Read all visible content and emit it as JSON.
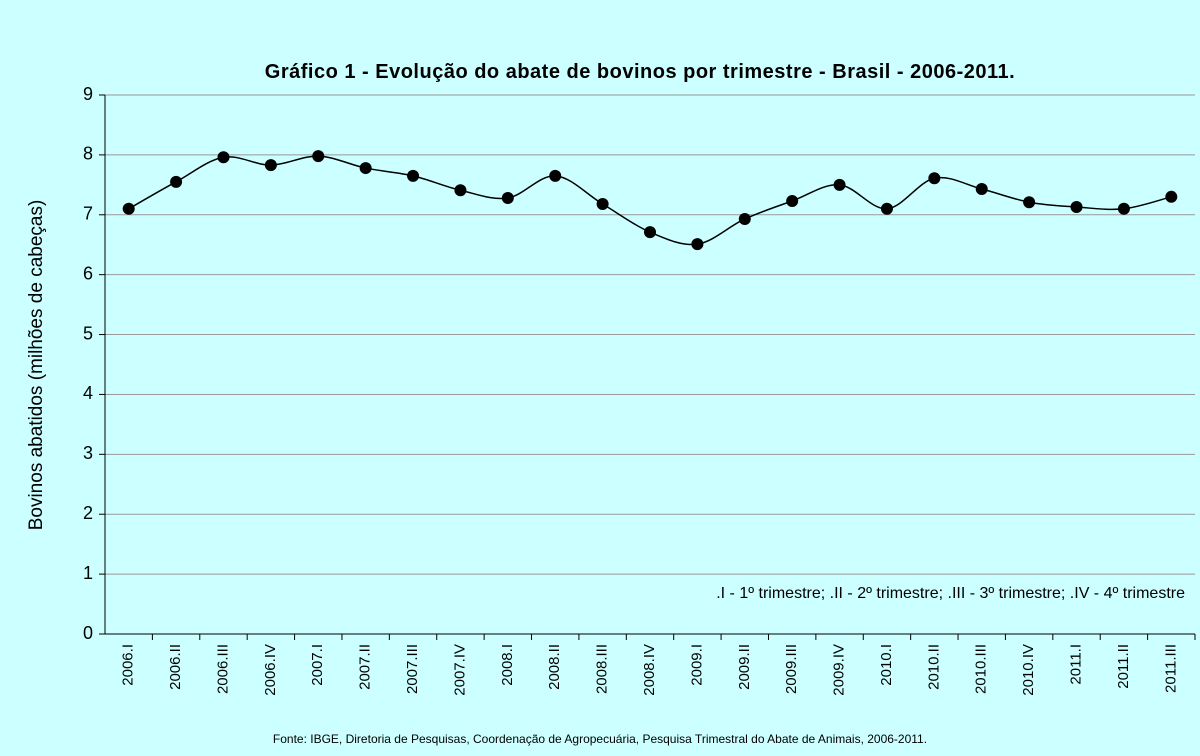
{
  "chart_data": {
    "type": "line",
    "title": "Gráfico 1 - Evolução do abate de bovinos por trimestre - Brasil - 2006-2011.",
    "y_label": "Bovinos abatidos (milhões de cabeças)",
    "annotation": ".I - 1º trimestre; .II - 2º trimestre; .III - 3º trimestre; .IV - 4º trimestre",
    "source": "Fonte: IBGE, Diretoria de Pesquisas, Coordenação de Agropecuária, Pesquisa Trimestral do Abate de Animais, 2006-2011.",
    "categories": [
      "2006.I",
      "2006.II",
      "2006.III",
      "2006.IV",
      "2007.I",
      "2007.II",
      "2007.III",
      "2007.IV",
      "2008.I",
      "2008.II",
      "2008.III",
      "2008.IV",
      "2009.I",
      "2009.II",
      "2009.III",
      "2009.IV",
      "2010.I",
      "2010.II",
      "2010.III",
      "2010.IV",
      "2011.I",
      "2011.II",
      "2011.III"
    ],
    "series": [
      {
        "name": "Bovinos abatidos",
        "color": "#000000",
        "values": [
          7.1,
          7.55,
          7.96,
          7.83,
          7.98,
          7.78,
          7.65,
          7.41,
          7.28,
          7.65,
          7.18,
          6.71,
          6.51,
          6.93,
          7.23,
          7.5,
          7.1,
          7.61,
          7.43,
          7.21,
          7.13,
          7.1,
          7.3
        ]
      }
    ],
    "ylim": [
      0,
      9
    ],
    "yticks": [
      0,
      1,
      2,
      3,
      4,
      5,
      6,
      7,
      8,
      9
    ],
    "grid": true,
    "smooth": true
  }
}
